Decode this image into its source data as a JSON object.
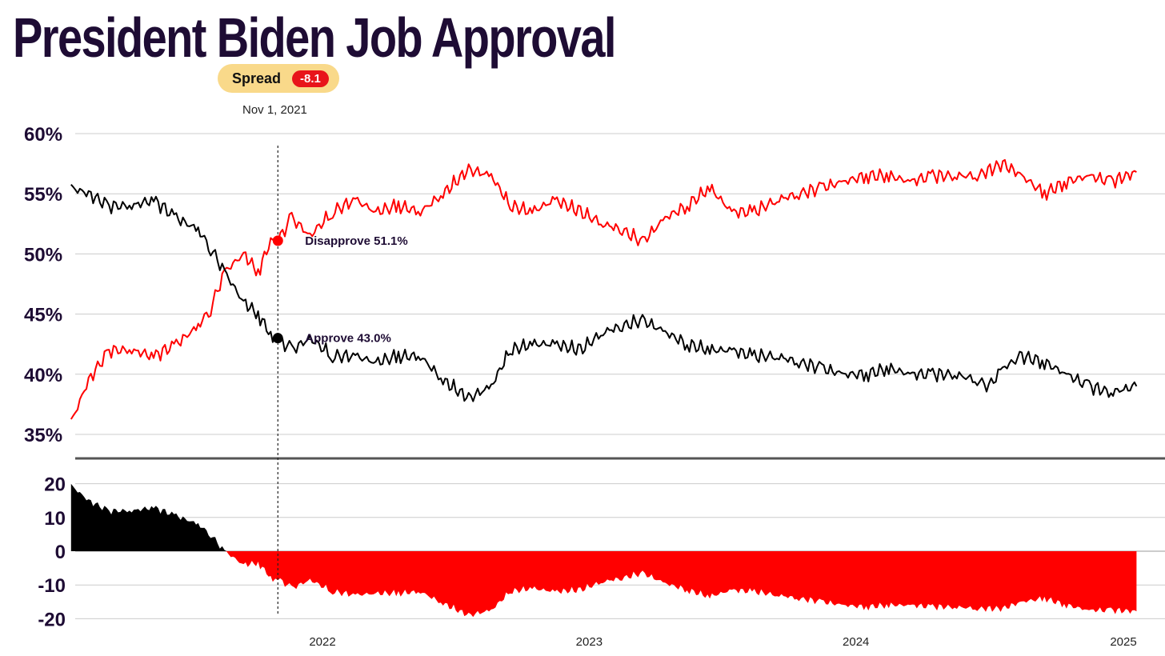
{
  "title": "President Biden Job Approval",
  "spread_badge": {
    "label": "Spread",
    "value": "-8.1"
  },
  "hover": {
    "date": "Nov 1, 2021",
    "disapprove_label": "Disapprove 51.1%",
    "approve_label": "Approve 43.0%"
  },
  "colors": {
    "approve": "#000000",
    "disapprove": "#ff0000",
    "title": "#1e0c34",
    "badge_bg": "#f9d98a",
    "badge_value_bg": "#e8141a"
  },
  "chart_data": [
    {
      "type": "line",
      "title": "President Biden Job Approval",
      "x_labels": [
        "2022",
        "2023",
        "2024",
        "2025"
      ],
      "y_tick_labels": [
        "60%",
        "55%",
        "50%",
        "45%",
        "40%",
        "35%"
      ],
      "ylim": [
        35,
        60
      ],
      "grid": true,
      "series": [
        {
          "name": "Disapprove",
          "color": "#ff0000",
          "points": [
            [
              "2021-01-22",
              36.0
            ],
            [
              "2021-02-15",
              39.5
            ],
            [
              "2021-03-15",
              42.0
            ],
            [
              "2021-04-15",
              42.0
            ],
            [
              "2021-05-15",
              41.5
            ],
            [
              "2021-06-15",
              42.5
            ],
            [
              "2021-07-15",
              44.0
            ],
            [
              "2021-08-01",
              45.5
            ],
            [
              "2021-08-20",
              48.5
            ],
            [
              "2021-09-15",
              50.0
            ],
            [
              "2021-10-05",
              48.5
            ],
            [
              "2021-10-25",
              51.5
            ],
            [
              "2021-11-01",
              51.1
            ],
            [
              "2021-11-20",
              53.0
            ],
            [
              "2021-12-15",
              51.5
            ],
            [
              "2022-01-15",
              53.5
            ],
            [
              "2022-02-15",
              54.5
            ],
            [
              "2022-03-15",
              53.5
            ],
            [
              "2022-04-15",
              54.0
            ],
            [
              "2022-05-15",
              53.5
            ],
            [
              "2022-06-15",
              55.0
            ],
            [
              "2022-07-20",
              57.0
            ],
            [
              "2022-08-20",
              56.5
            ],
            [
              "2022-09-15",
              54.0
            ],
            [
              "2022-10-15",
              53.5
            ],
            [
              "2022-11-15",
              54.5
            ],
            [
              "2022-12-20",
              53.5
            ],
            [
              "2023-01-20",
              52.5
            ],
            [
              "2023-02-15",
              52.0
            ],
            [
              "2023-03-15",
              51.0
            ],
            [
              "2023-04-15",
              53.0
            ],
            [
              "2023-05-15",
              54.0
            ],
            [
              "2023-06-15",
              55.5
            ],
            [
              "2023-07-15",
              53.5
            ],
            [
              "2023-08-15",
              53.5
            ],
            [
              "2023-09-15",
              54.5
            ],
            [
              "2023-10-15",
              55.0
            ],
            [
              "2023-11-15",
              55.5
            ],
            [
              "2023-12-15",
              56.0
            ],
            [
              "2024-01-15",
              56.5
            ],
            [
              "2024-02-15",
              56.5
            ],
            [
              "2024-03-15",
              56.0
            ],
            [
              "2024-04-15",
              56.5
            ],
            [
              "2024-05-15",
              56.5
            ],
            [
              "2024-06-15",
              56.5
            ],
            [
              "2024-07-20",
              57.5
            ],
            [
              "2024-08-15",
              56.5
            ],
            [
              "2024-09-15",
              55.0
            ],
            [
              "2024-10-15",
              56.0
            ],
            [
              "2024-11-15",
              56.5
            ],
            [
              "2024-12-15",
              56.0
            ],
            [
              "2025-01-19",
              56.8
            ]
          ]
        },
        {
          "name": "Approve",
          "color": "#000000",
          "points": [
            [
              "2021-01-22",
              55.5
            ],
            [
              "2021-02-15",
              55.0
            ],
            [
              "2021-03-15",
              54.0
            ],
            [
              "2021-04-15",
              54.0
            ],
            [
              "2021-05-15",
              54.5
            ],
            [
              "2021-06-15",
              53.0
            ],
            [
              "2021-07-15",
              52.0
            ],
            [
              "2021-08-01",
              50.5
            ],
            [
              "2021-08-20",
              48.5
            ],
            [
              "2021-09-15",
              46.0
            ],
            [
              "2021-10-05",
              45.0
            ],
            [
              "2021-10-25",
              43.0
            ],
            [
              "2021-11-01",
              43.0
            ],
            [
              "2021-11-20",
              42.0
            ],
            [
              "2021-12-15",
              43.0
            ],
            [
              "2022-01-15",
              41.5
            ],
            [
              "2022-02-15",
              41.5
            ],
            [
              "2022-03-15",
              41.0
            ],
            [
              "2022-04-15",
              41.5
            ],
            [
              "2022-05-15",
              41.5
            ],
            [
              "2022-06-15",
              39.5
            ],
            [
              "2022-07-20",
              38.0
            ],
            [
              "2022-08-20",
              39.0
            ],
            [
              "2022-09-15",
              42.0
            ],
            [
              "2022-10-15",
              42.5
            ],
            [
              "2022-11-15",
              42.5
            ],
            [
              "2022-12-20",
              42.0
            ],
            [
              "2023-01-20",
              43.5
            ],
            [
              "2023-02-15",
              44.0
            ],
            [
              "2023-03-15",
              44.5
            ],
            [
              "2023-04-15",
              43.5
            ],
            [
              "2023-05-15",
              42.5
            ],
            [
              "2023-06-15",
              42.0
            ],
            [
              "2023-07-15",
              42.0
            ],
            [
              "2023-08-15",
              41.5
            ],
            [
              "2023-09-15",
              41.5
            ],
            [
              "2023-10-15",
              41.0
            ],
            [
              "2023-11-15",
              40.5
            ],
            [
              "2023-12-15",
              40.0
            ],
            [
              "2024-01-15",
              40.0
            ],
            [
              "2024-02-15",
              40.5
            ],
            [
              "2024-03-15",
              40.0
            ],
            [
              "2024-04-15",
              40.0
            ],
            [
              "2024-05-15",
              40.0
            ],
            [
              "2024-06-15",
              39.5
            ],
            [
              "2024-07-01",
              39.0
            ],
            [
              "2024-07-20",
              40.5
            ],
            [
              "2024-08-15",
              41.5
            ],
            [
              "2024-09-15",
              41.0
            ],
            [
              "2024-10-15",
              40.0
            ],
            [
              "2024-11-15",
              39.0
            ],
            [
              "2024-12-15",
              38.5
            ],
            [
              "2025-01-19",
              39.0
            ]
          ]
        }
      ],
      "hover_marker": {
        "date": "2021-11-01",
        "disapprove": 51.1,
        "approve": 43.0
      }
    },
    {
      "type": "area",
      "y_tick_labels": [
        "20",
        "10",
        "0",
        "-10",
        "-20"
      ],
      "ylim": [
        -20,
        20
      ],
      "series": [
        {
          "name": "Spread",
          "positive_color": "#000000",
          "negative_color": "#ff0000",
          "points": [
            [
              "2021-01-22",
              19.5
            ],
            [
              "2021-02-15",
              15.0
            ],
            [
              "2021-03-15",
              12.0
            ],
            [
              "2021-04-15",
              12.0
            ],
            [
              "2021-05-15",
              13.0
            ],
            [
              "2021-06-15",
              10.5
            ],
            [
              "2021-07-15",
              8.0
            ],
            [
              "2021-08-01",
              5.0
            ],
            [
              "2021-08-20",
              0.0
            ],
            [
              "2021-09-15",
              -4.0
            ],
            [
              "2021-10-05",
              -3.5
            ],
            [
              "2021-10-25",
              -8.5
            ],
            [
              "2021-11-01",
              -8.1
            ],
            [
              "2021-11-20",
              -11.0
            ],
            [
              "2021-12-15",
              -8.5
            ],
            [
              "2022-01-15",
              -12.0
            ],
            [
              "2022-02-15",
              -13.0
            ],
            [
              "2022-03-15",
              -12.5
            ],
            [
              "2022-04-15",
              -12.5
            ],
            [
              "2022-05-15",
              -12.0
            ],
            [
              "2022-06-15",
              -15.5
            ],
            [
              "2022-07-20",
              -19.0
            ],
            [
              "2022-08-20",
              -17.5
            ],
            [
              "2022-09-15",
              -12.0
            ],
            [
              "2022-10-15",
              -11.0
            ],
            [
              "2022-11-15",
              -12.0
            ],
            [
              "2022-12-20",
              -11.5
            ],
            [
              "2023-01-20",
              -9.0
            ],
            [
              "2023-02-15",
              -8.0
            ],
            [
              "2023-03-15",
              -6.5
            ],
            [
              "2023-04-15",
              -9.5
            ],
            [
              "2023-05-15",
              -11.5
            ],
            [
              "2023-06-15",
              -13.5
            ],
            [
              "2023-07-15",
              -11.5
            ],
            [
              "2023-08-15",
              -12.0
            ],
            [
              "2023-09-15",
              -13.0
            ],
            [
              "2023-10-15",
              -14.0
            ],
            [
              "2023-11-15",
              -15.0
            ],
            [
              "2023-12-15",
              -16.0
            ],
            [
              "2024-01-15",
              -16.5
            ],
            [
              "2024-02-15",
              -16.0
            ],
            [
              "2024-03-15",
              -16.0
            ],
            [
              "2024-04-15",
              -16.5
            ],
            [
              "2024-05-15",
              -16.5
            ],
            [
              "2024-06-15",
              -17.0
            ],
            [
              "2024-07-20",
              -17.0
            ],
            [
              "2024-08-15",
              -15.0
            ],
            [
              "2024-09-15",
              -14.0
            ],
            [
              "2024-10-15",
              -16.0
            ],
            [
              "2024-11-15",
              -17.5
            ],
            [
              "2024-12-15",
              -17.5
            ],
            [
              "2025-01-19",
              -17.8
            ]
          ]
        }
      ]
    }
  ]
}
